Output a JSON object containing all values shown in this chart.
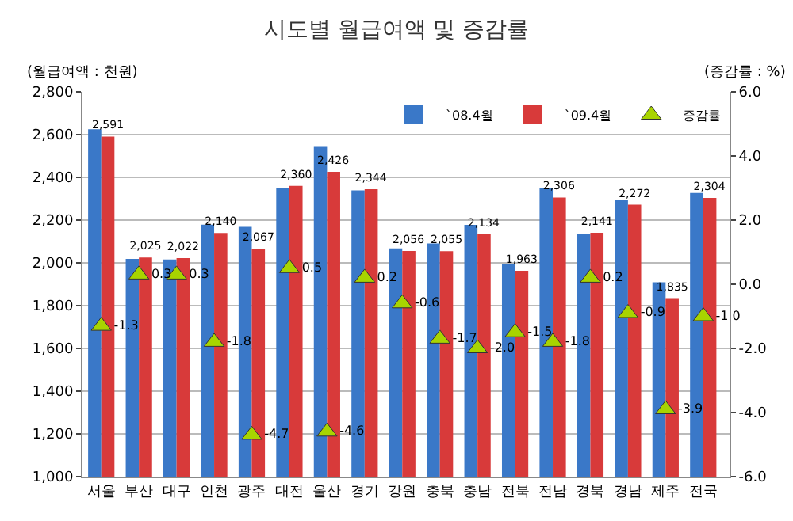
{
  "chart_data": {
    "type": "bar",
    "title": "시도별 월급여액 및 증감률",
    "categories": [
      "서울",
      "부산",
      "대구",
      "인천",
      "광주",
      "대전",
      "울산",
      "경기",
      "강원",
      "충북",
      "충남",
      "전북",
      "전남",
      "경북",
      "경남",
      "제주",
      "전국"
    ],
    "series": [
      {
        "name": "`08.4월",
        "color": "#3a78c8",
        "values": [
          2625,
          2019,
          2016,
          2179,
          2169,
          2348,
          2543,
          2339,
          2068,
          2091,
          2178,
          1993,
          2348,
          2137,
          2293,
          1909,
          2327
        ]
      },
      {
        "name": "`09.4월",
        "color": "#d83a3a",
        "values": [
          2591,
          2025,
          2022,
          2140,
          2067,
          2360,
          2426,
          2344,
          2056,
          2055,
          2134,
          1963,
          2306,
          2141,
          2272,
          1835,
          2304
        ],
        "value_labels": [
          "2,591",
          "2,025",
          "2,022",
          "2,140",
          "2,067",
          "2,360",
          "2,426",
          "2,344",
          "2,056",
          "2,055",
          "2,134",
          "1,963",
          "2,306",
          "2,141",
          "2,272",
          "1,835",
          "2,304"
        ]
      },
      {
        "name": "증감률",
        "type": "scatter",
        "axis": "y2",
        "color": "#a8d400",
        "values": [
          -1.3,
          0.3,
          0.3,
          -1.8,
          -4.7,
          0.5,
          -4.6,
          0.2,
          -0.6,
          -1.7,
          -2.0,
          -1.5,
          -1.8,
          0.2,
          -0.9,
          -3.9,
          -1.0
        ],
        "value_labels": [
          "-1.3",
          "0.3",
          "0.3",
          "-1.8",
          "-4.7",
          "0.5",
          "-4.6",
          "0.2",
          "-0.6",
          "-1.7",
          "-2.0",
          "-1.5",
          "-1.8",
          "0.2",
          "-0.9",
          "-3.9",
          "-1.0"
        ]
      }
    ],
    "ylim": [
      1000,
      2800
    ],
    "yticks": [
      {
        "value": 1000,
        "label": "1,000"
      },
      {
        "value": 1200,
        "label": "1,200"
      },
      {
        "value": 1400,
        "label": "1,400"
      },
      {
        "value": 1600,
        "label": "1,600"
      },
      {
        "value": 1800,
        "label": "1,800"
      },
      {
        "value": 2000,
        "label": "2,000"
      },
      {
        "value": 2200,
        "label": "2,200"
      },
      {
        "value": 2400,
        "label": "2,400"
      },
      {
        "value": 2600,
        "label": "2,600"
      },
      {
        "value": 2800,
        "label": "2,800"
      }
    ],
    "y2lim": [
      -6,
      6
    ],
    "y2ticks": [
      {
        "value": -6,
        "label": "-6.0"
      },
      {
        "value": -4,
        "label": "-4.0"
      },
      {
        "value": -2,
        "label": "-2.0"
      },
      {
        "value": 0,
        "label": "0.0"
      },
      {
        "value": 2,
        "label": "2.0"
      },
      {
        "value": 4,
        "label": "4.0"
      },
      {
        "value": 6,
        "label": "6.0"
      }
    ],
    "marker": "triangle",
    "grid": "y",
    "legend": "top right",
    "annotations": [
      "(월급여액 : 천원)",
      "(증감률 : %)"
    ]
  }
}
